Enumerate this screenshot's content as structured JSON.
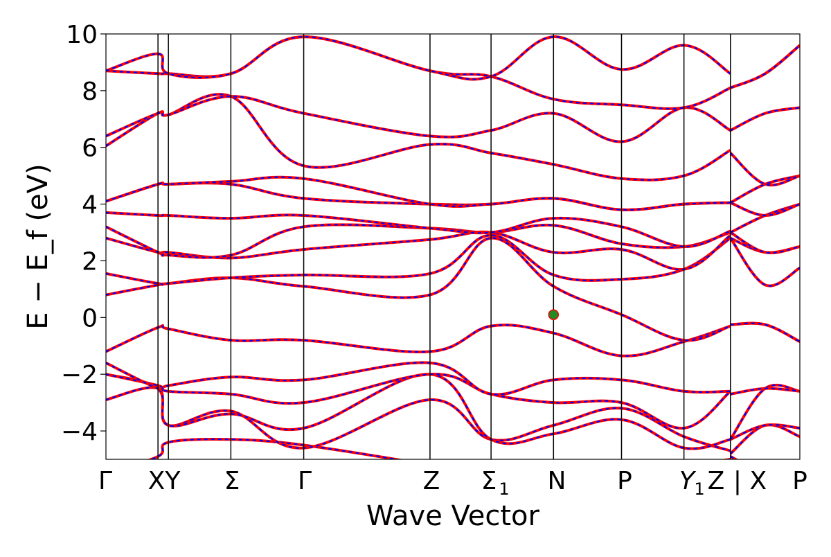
{
  "chart_data": {
    "type": "line",
    "title": "",
    "xlabel": "Wave Vector",
    "ylabel": "E − E_f (eV)",
    "ylim": [
      -5,
      10
    ],
    "xlim": [
      0,
      1
    ],
    "grid": false,
    "yticks": [
      -4,
      -2,
      0,
      2,
      4,
      6,
      8,
      10
    ],
    "ytick_labels": [
      "−4",
      "−2",
      "0",
      "2",
      "4",
      "6",
      "8",
      "10"
    ],
    "kpoints": [
      {
        "label": "Γ",
        "x": 0.0
      },
      {
        "label": "X",
        "x": 0.075
      },
      {
        "label": "Y",
        "x": 0.09
      },
      {
        "label": "Σ",
        "x": 0.18
      },
      {
        "label": "Γ",
        "x": 0.285
      },
      {
        "label": "Z",
        "x": 0.467
      },
      {
        "label": "Σ",
        "sub": "1",
        "x": 0.555
      },
      {
        "label": "N",
        "x": 0.645
      },
      {
        "label": "P",
        "x": 0.743
      },
      {
        "label": "Y",
        "sub": "1",
        "x": 0.833
      },
      {
        "label": "Z | X",
        "x": 0.9
      },
      {
        "label": "P",
        "x": 1.0
      }
    ],
    "tick_label_texts": {
      "gamma1": "Γ",
      "xy": "XY",
      "sigma": "Σ",
      "gamma2": "Γ",
      "z": "Z",
      "sigma1": "Σ",
      "sigma1_sub": "1",
      "n": "N",
      "p": "P",
      "y1z": "Y",
      "y1z_sub": "1",
      "y1z_tail": "Z",
      "bar_x": "| X",
      "p2": "P"
    },
    "special_point": {
      "label": "N",
      "x": 0.645,
      "y": 0.1,
      "color": "#228b22"
    },
    "series_style": [
      {
        "color": "#ff0000",
        "style": "solid"
      },
      {
        "color": "#0000ff",
        "style": "dashed"
      }
    ],
    "bands": [
      [
        -5.5,
        -4.9,
        -4.4,
        -4.3,
        -4.5,
        -5.2,
        -5.6,
        -5.5,
        -5.3,
        -5.2,
        -5.0,
        -4.9,
        -5.5,
        -5.6
      ],
      [
        -2.9,
        -2.5,
        -3.8,
        -3.3,
        -4.6,
        -2.9,
        -4.3,
        -3.8,
        -3.2,
        -4.2,
        -4.7,
        -4.8,
        -3.8,
        -4.2
      ],
      [
        -2.0,
        -2.5,
        -3.8,
        -3.4,
        -3.9,
        -2.0,
        -4.3,
        -4.1,
        -3.6,
        -4.6,
        -4.3,
        -4.3,
        -3.8,
        -3.9
      ],
      [
        -2.0,
        -2.4,
        -2.6,
        -2.7,
        -3.0,
        -2.0,
        -2.7,
        -3.0,
        -3.0,
        -3.9,
        -2.6,
        -4.3,
        -2.5,
        -2.6
      ],
      [
        -1.6,
        -2.5,
        -2.4,
        -2.1,
        -2.2,
        -1.6,
        -2.7,
        -2.2,
        -2.2,
        -2.6,
        -2.6,
        -2.7,
        -2.5,
        -2.6
      ],
      [
        -1.2,
        -0.35,
        -0.4,
        -0.8,
        -0.8,
        -1.2,
        -0.3,
        -0.55,
        -1.35,
        -0.85,
        -0.3,
        -0.25,
        -0.25,
        -0.85
      ],
      [
        0.8,
        1.15,
        1.2,
        1.4,
        1.1,
        0.8,
        2.8,
        1.1,
        0.1,
        -0.8,
        -0.3,
        -0.25,
        -0.25,
        -0.85
      ],
      [
        1.55,
        1.2,
        1.2,
        1.4,
        1.5,
        1.55,
        2.9,
        1.5,
        1.35,
        1.7,
        2.8,
        2.8,
        1.15,
        1.75
      ],
      [
        2.8,
        2.3,
        2.3,
        2.1,
        2.4,
        2.75,
        3.0,
        2.3,
        2.4,
        1.7,
        2.9,
        2.8,
        2.3,
        2.5
      ],
      [
        3.2,
        2.3,
        2.2,
        2.2,
        3.2,
        3.15,
        3.0,
        3.25,
        2.6,
        2.5,
        3.0,
        3.0,
        2.3,
        2.5
      ],
      [
        3.7,
        3.6,
        3.6,
        3.5,
        3.6,
        3.15,
        3.0,
        3.5,
        3.2,
        2.5,
        3.05,
        3.0,
        3.6,
        4.0
      ],
      [
        4.1,
        4.7,
        4.7,
        4.7,
        4.2,
        4.0,
        4.0,
        4.2,
        3.8,
        4.0,
        4.05,
        4.05,
        3.6,
        4.0
      ],
      [
        4.1,
        4.7,
        4.7,
        4.8,
        4.9,
        4.0,
        4.0,
        4.2,
        3.8,
        4.0,
        4.05,
        4.05,
        4.7,
        5.0
      ],
      [
        6.05,
        7.2,
        7.15,
        7.8,
        5.35,
        6.1,
        5.8,
        5.4,
        4.9,
        5.0,
        5.9,
        5.8,
        4.7,
        5.0
      ],
      [
        6.4,
        7.2,
        7.15,
        7.8,
        7.2,
        6.4,
        6.6,
        7.2,
        6.2,
        7.4,
        6.6,
        6.6,
        7.2,
        7.4
      ],
      [
        8.7,
        8.6,
        8.6,
        8.6,
        9.9,
        8.7,
        8.5,
        7.7,
        7.5,
        7.4,
        8.1,
        8.1,
        8.6,
        9.6
      ],
      [
        8.7,
        9.3,
        8.6,
        8.6,
        9.9,
        8.7,
        8.5,
        9.9,
        8.75,
        9.6,
        8.6,
        8.1,
        8.6,
        9.6
      ]
    ]
  }
}
